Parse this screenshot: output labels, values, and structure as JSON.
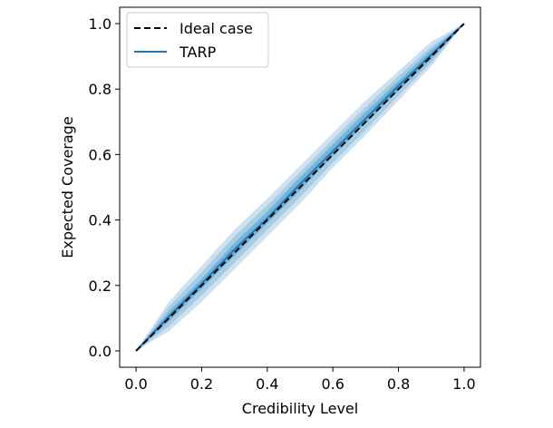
{
  "chart_data": {
    "type": "line",
    "title": "",
    "xlabel": "Credibility Level",
    "ylabel": "Expected Coverage",
    "xlim": [
      -0.05,
      1.05
    ],
    "ylim": [
      -0.05,
      1.05
    ],
    "xticks": [
      "0.0",
      "0.2",
      "0.4",
      "0.6",
      "0.8",
      "1.0"
    ],
    "yticks": [
      "0.0",
      "0.2",
      "0.4",
      "0.6",
      "0.8",
      "1.0"
    ],
    "grid": false,
    "legend_placement": "top-left",
    "legend": [
      "Ideal case",
      "TARP"
    ],
    "series": [
      {
        "name": "Ideal case",
        "style": "dashed",
        "color": "#000000",
        "x": [
          0.0,
          1.0
        ],
        "y": [
          0.0,
          1.0
        ]
      },
      {
        "name": "TARP",
        "style": "solid",
        "color": "#1f77b4",
        "x": [
          0.0,
          0.1,
          0.2,
          0.3,
          0.4,
          0.5,
          0.6,
          0.7,
          0.8,
          0.9,
          1.0
        ],
        "y": [
          0.0,
          0.105,
          0.205,
          0.31,
          0.405,
          0.51,
          0.61,
          0.71,
          0.81,
          0.905,
          1.0
        ]
      }
    ],
    "bands": [
      {
        "level": "outer",
        "x": [
          0.0,
          0.1,
          0.2,
          0.3,
          0.4,
          0.5,
          0.6,
          0.7,
          0.8,
          0.9,
          1.0
        ],
        "lower": [
          0.0,
          0.06,
          0.15,
          0.25,
          0.35,
          0.45,
          0.56,
          0.66,
          0.765,
          0.87,
          1.0
        ],
        "upper": [
          0.0,
          0.15,
          0.26,
          0.37,
          0.465,
          0.565,
          0.665,
          0.765,
          0.855,
          0.945,
          1.0
        ]
      },
      {
        "level": "middle",
        "x": [
          0.0,
          0.1,
          0.2,
          0.3,
          0.4,
          0.5,
          0.6,
          0.7,
          0.8,
          0.9,
          1.0
        ],
        "lower": [
          0.0,
          0.075,
          0.17,
          0.27,
          0.37,
          0.47,
          0.575,
          0.675,
          0.78,
          0.88,
          1.0
        ],
        "upper": [
          0.0,
          0.135,
          0.24,
          0.35,
          0.445,
          0.545,
          0.645,
          0.745,
          0.84,
          0.93,
          1.0
        ]
      },
      {
        "level": "inner",
        "x": [
          0.0,
          0.1,
          0.2,
          0.3,
          0.4,
          0.5,
          0.6,
          0.7,
          0.8,
          0.9,
          1.0
        ],
        "lower": [
          0.0,
          0.09,
          0.19,
          0.29,
          0.39,
          0.49,
          0.595,
          0.695,
          0.795,
          0.89,
          1.0
        ],
        "upper": [
          0.0,
          0.12,
          0.22,
          0.33,
          0.425,
          0.53,
          0.63,
          0.73,
          0.825,
          0.92,
          1.0
        ]
      }
    ],
    "colors": {
      "tarp_line": "#1f77b4",
      "band_outer": "#c6dbef",
      "band_middle": "#9ecae1",
      "band_inner": "#6baed6",
      "ideal": "#000000"
    }
  }
}
